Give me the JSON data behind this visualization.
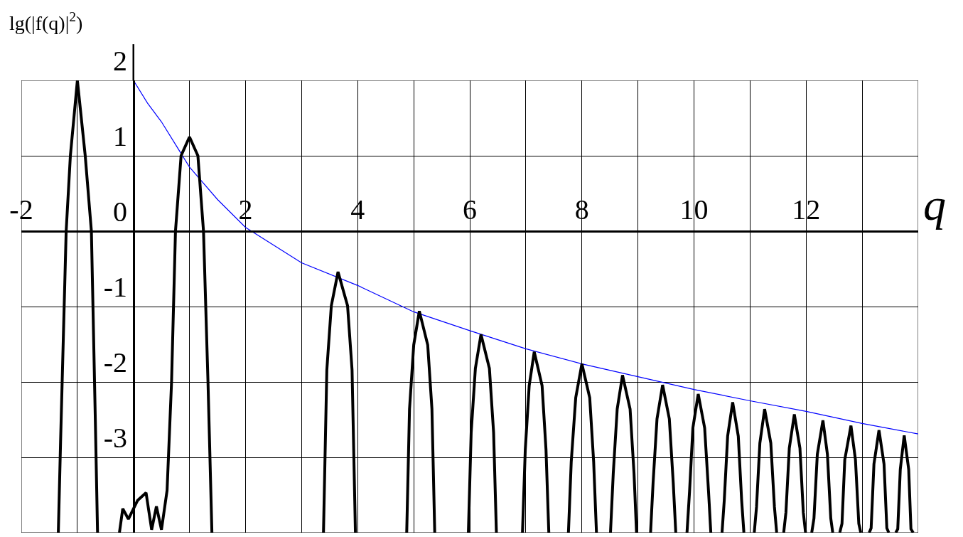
{
  "chart_data": {
    "type": "line",
    "xlabel": "q",
    "ylabel": "lg(|f(q)|$^{2}$)",
    "xlim": [
      -2,
      14
    ],
    "ylim": [
      -4,
      2
    ],
    "xticks": [
      -2,
      {
        "value": -1,
        "label": null
      },
      {
        "value": 0,
        "label": null
      },
      {
        "value": 1,
        "label": null
      },
      2,
      {
        "value": 3,
        "label": null
      },
      4,
      {
        "value": 5,
        "label": null
      },
      6,
      {
        "value": 7,
        "label": null
      },
      8,
      {
        "value": 9,
        "label": null
      },
      10,
      {
        "value": 11,
        "label": null
      },
      12,
      {
        "value": 13,
        "label": null
      },
      {
        "value": 14,
        "label": null
      }
    ],
    "yticks": [
      {
        "value": -4,
        "label": null
      },
      -3,
      -2,
      -1,
      0,
      1,
      2
    ],
    "grid": true,
    "marker": "none",
    "series": [
      {
        "color": "#0000ff",
        "x": [
          0,
          0.25,
          0.5,
          1,
          1.5,
          2,
          3,
          4,
          5,
          6,
          7,
          8,
          9,
          10,
          11,
          12,
          13,
          14
        ],
        "values": [
          2,
          1.7,
          1.45,
          0.85,
          0.42,
          0.05,
          -0.42,
          -0.72,
          -1.07,
          -1.32,
          -1.56,
          -1.76,
          -1.93,
          -2.1,
          -2.25,
          -2.39,
          -2.55,
          -2.69
        ]
      },
      {
        "color": "#000000",
        "x": [
          -1.34,
          -1.3,
          -1.2,
          -1.125,
          -1.0,
          -0.86,
          -0.75,
          -0.68,
          -0.64,
          null,
          -0.25,
          -0.19,
          -0.09,
          0.075,
          0.225,
          0.325,
          0.41,
          0.5,
          0.6,
          0.68,
          0.75,
          0.85,
          1.0,
          1.15,
          1.25,
          1.33,
          1.4,
          null,
          3.39,
          3.45,
          3.53,
          3.65,
          3.82,
          3.9,
          3.96,
          null,
          4.875,
          4.925,
          5.0,
          5.1,
          5.25,
          5.325,
          5.375,
          null,
          5.975,
          6.025,
          6.1,
          6.2,
          6.35,
          6.425,
          6.475,
          null,
          6.94,
          6.99,
          7.06,
          7.15,
          7.29,
          7.36,
          7.41,
          null,
          7.76,
          7.81,
          7.89,
          8.0,
          8.14,
          8.21,
          8.26,
          null,
          8.51,
          8.56,
          8.63,
          8.725,
          8.86,
          8.93,
          8.975,
          null,
          9.225,
          9.27,
          9.34,
          9.44,
          9.56,
          9.63,
          9.675,
          null,
          9.875,
          9.92,
          9.98,
          10.075,
          10.19,
          10.26,
          10.3,
          null,
          10.5,
          10.54,
          10.6,
          10.69,
          10.79,
          10.85,
          10.89,
          null,
          11.075,
          11.115,
          11.175,
          11.26,
          11.37,
          11.435,
          11.475,
          null,
          11.6,
          11.64,
          11.7,
          11.79,
          11.89,
          11.95,
          11.99,
          null,
          12.1,
          12.14,
          12.2,
          12.3,
          12.38,
          12.44,
          12.475,
          null,
          12.6,
          12.64,
          12.69,
          12.8,
          12.88,
          12.94,
          12.975,
          null,
          13.125,
          13.16,
          13.21,
          13.3,
          13.39,
          13.44,
          13.475,
          null,
          13.6,
          13.635,
          13.68,
          13.75,
          13.83,
          13.87,
          13.91
        ],
        "values": [
          -4,
          -2.8,
          0,
          1,
          2.0,
          1,
          0,
          -2.5,
          -4,
          null,
          -4,
          -3.68,
          -3.82,
          -3.57,
          -3.47,
          -3.96,
          -3.65,
          -3.96,
          -3.44,
          -2.0,
          0,
          1.0,
          1.25,
          1.0,
          0,
          -2.0,
          -4,
          null,
          -4,
          -1.84,
          -0.99,
          -0.54,
          -0.99,
          -1.84,
          -4,
          null,
          -4,
          -2.36,
          -1.51,
          -1.06,
          -1.51,
          -2.36,
          -4,
          null,
          -4,
          -2.67,
          -1.82,
          -1.37,
          -1.82,
          -2.67,
          -4,
          null,
          -4,
          -2.9,
          -2.05,
          -1.6,
          -2.05,
          -2.9,
          -4,
          null,
          -4,
          -3.06,
          -2.21,
          -1.76,
          -2.21,
          -3.06,
          -4,
          null,
          -4,
          -3.21,
          -2.36,
          -1.91,
          -2.36,
          -3.21,
          -4,
          null,
          -4,
          -3.34,
          -2.49,
          -2.04,
          -2.49,
          -3.34,
          -4,
          null,
          -4,
          -3.46,
          -2.61,
          -2.16,
          -2.61,
          -3.46,
          -4,
          null,
          -4,
          -3.57,
          -2.72,
          -2.27,
          -2.72,
          -3.57,
          -4,
          null,
          -4,
          -3.66,
          -2.81,
          -2.36,
          -2.81,
          -3.66,
          -4,
          null,
          -4,
          -3.73,
          -2.88,
          -2.43,
          -2.88,
          -3.73,
          -4,
          null,
          -4,
          -3.81,
          -2.96,
          -2.51,
          -2.96,
          -3.81,
          -4,
          null,
          -4,
          -3.88,
          -3.03,
          -2.58,
          -3.03,
          -3.88,
          -4,
          null,
          -4,
          -3.94,
          -3.09,
          -2.64,
          -3.09,
          -3.94,
          -4,
          null,
          -4,
          -3.95,
          -3.16,
          -2.71,
          -3.16,
          -3.95,
          -4
        ]
      }
    ]
  }
}
